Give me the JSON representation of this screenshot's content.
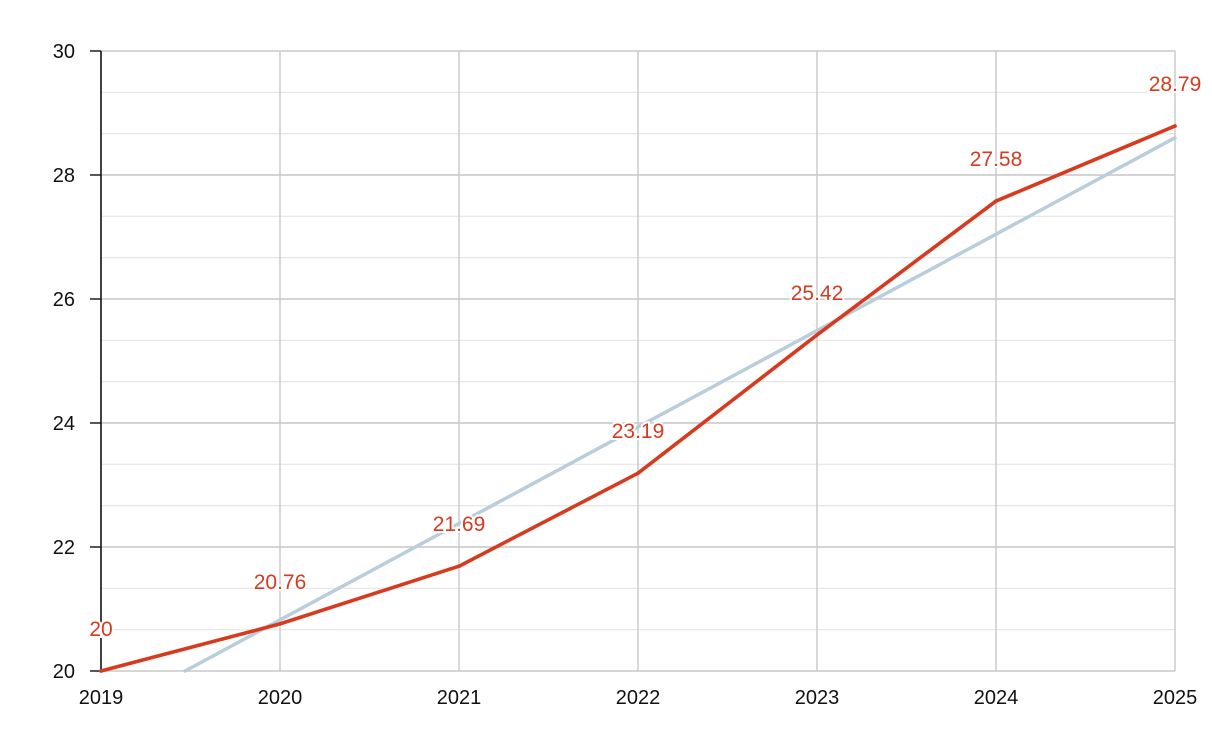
{
  "chart_data": {
    "type": "line",
    "title": "",
    "xlabel": "",
    "ylabel": "",
    "x": [
      2019,
      2020,
      2021,
      2022,
      2023,
      2024,
      2025
    ],
    "xlim": [
      2019,
      2025
    ],
    "ylim": [
      20,
      30
    ],
    "x_ticks": [
      "2019",
      "2020",
      "2021",
      "2022",
      "2023",
      "2024",
      "2025"
    ],
    "y_ticks": [
      "20",
      "22",
      "24",
      "26",
      "28",
      "30"
    ],
    "y_minor_step": 0.6667,
    "grid": true,
    "legend": "none",
    "series": [
      {
        "values": [
          20,
          20.76,
          21.69,
          23.19,
          25.42,
          27.58,
          28.79
        ],
        "data_labels": [
          "20",
          "20.76",
          "21.69",
          "23.19",
          "25.42",
          "27.58",
          "28.79"
        ],
        "color": "#d63b1f"
      }
    ],
    "trendline": {
      "kind": "linear",
      "points": [
        [
          2019.47,
          20
        ],
        [
          2025,
          28.6
        ]
      ],
      "color": "#b9cedd"
    }
  }
}
